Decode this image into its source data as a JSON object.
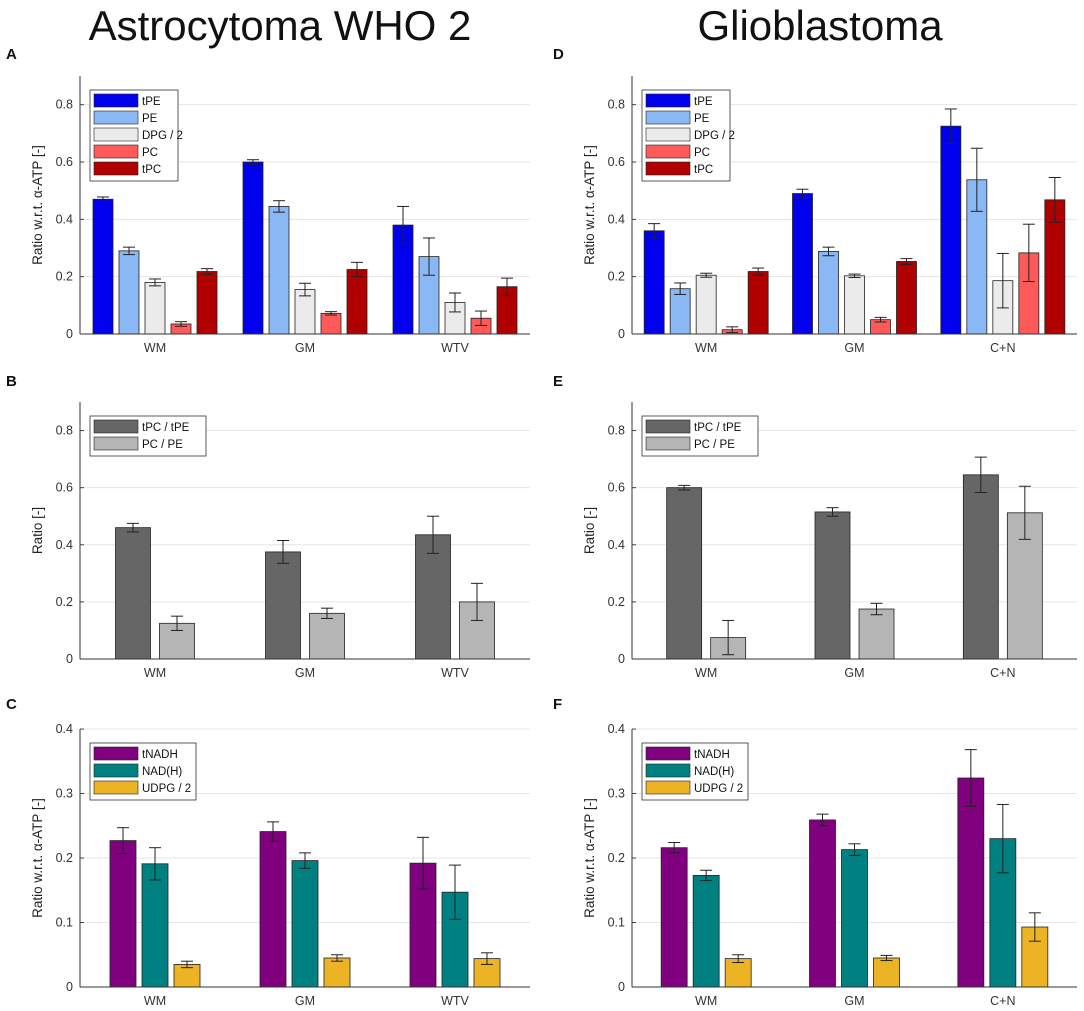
{
  "headings": {
    "left": "Astrocytoma WHO 2",
    "right": "Glioblastoma"
  },
  "colors": {
    "tPE": "#0000ee",
    "PE": "#8ab8f5",
    "DPG / 2": "#ebebeb",
    "PC": "#ff5a5a",
    "tPC": "#b00000",
    "tPC / tPE": "#666666",
    "PC / PE": "#b5b5b5",
    "tNADH": "#800080",
    "NAD(H)": "#008080",
    "UDPG / 2": "#ecb425"
  },
  "chart_data": [
    {
      "id": "A",
      "letter": "A",
      "type": "bar",
      "ylabel": "Ratio w.r.t. α-ATP [-]",
      "ylim": [
        0,
        0.9
      ],
      "yticks": [
        0,
        0.2,
        0.4,
        0.6,
        0.8
      ],
      "categories": [
        "WM",
        "GM",
        "WTV"
      ],
      "legend_position": "top-left",
      "grid": "horizontal",
      "series": [
        {
          "name": "tPE",
          "values": [
            0.47,
            0.6,
            0.38
          ],
          "errors": [
            0.008,
            0.008,
            0.065
          ]
        },
        {
          "name": "PE",
          "values": [
            0.29,
            0.445,
            0.27
          ],
          "errors": [
            0.013,
            0.02,
            0.065
          ]
        },
        {
          "name": "DPG / 2",
          "values": [
            0.18,
            0.155,
            0.11
          ],
          "errors": [
            0.012,
            0.022,
            0.033
          ]
        },
        {
          "name": "PC",
          "values": [
            0.035,
            0.072,
            0.055
          ],
          "errors": [
            0.008,
            0.006,
            0.025
          ]
        },
        {
          "name": "tPC",
          "values": [
            0.218,
            0.225,
            0.165
          ],
          "errors": [
            0.01,
            0.025,
            0.03
          ]
        }
      ]
    },
    {
      "id": "B",
      "letter": "B",
      "type": "bar",
      "ylabel": "Ratio [-]",
      "ylim": [
        0,
        0.9
      ],
      "yticks": [
        0,
        0.2,
        0.4,
        0.6,
        0.8
      ],
      "categories": [
        "WM",
        "GM",
        "WTV"
      ],
      "legend_position": "top-left",
      "grid": "horizontal",
      "series": [
        {
          "name": "tPC / tPE",
          "values": [
            0.46,
            0.375,
            0.435
          ],
          "errors": [
            0.015,
            0.04,
            0.065
          ]
        },
        {
          "name": "PC / PE",
          "values": [
            0.125,
            0.16,
            0.2
          ],
          "errors": [
            0.025,
            0.018,
            0.065
          ]
        }
      ]
    },
    {
      "id": "C",
      "letter": "C",
      "type": "bar",
      "ylabel": "Ratio w.r.t. α-ATP [-]",
      "ylim": [
        0,
        0.4
      ],
      "yticks": [
        0,
        0.1,
        0.2,
        0.3,
        0.4
      ],
      "categories": [
        "WM",
        "GM",
        "WTV"
      ],
      "legend_position": "top-left",
      "grid": "horizontal",
      "series": [
        {
          "name": "tNADH",
          "values": [
            0.227,
            0.241,
            0.192
          ],
          "errors": [
            0.02,
            0.015,
            0.04
          ]
        },
        {
          "name": "NAD(H)",
          "values": [
            0.191,
            0.196,
            0.147
          ],
          "errors": [
            0.025,
            0.012,
            0.042
          ]
        },
        {
          "name": "UDPG / 2",
          "values": [
            0.035,
            0.045,
            0.044
          ],
          "errors": [
            0.005,
            0.005,
            0.009
          ]
        }
      ]
    },
    {
      "id": "D",
      "letter": "D",
      "type": "bar",
      "ylabel": "Ratio w.r.t. α-ATP [-]",
      "ylim": [
        0,
        0.9
      ],
      "yticks": [
        0,
        0.2,
        0.4,
        0.6,
        0.8
      ],
      "categories": [
        "WM",
        "GM",
        "C+N"
      ],
      "legend_position": "top-left",
      "grid": "horizontal",
      "series": [
        {
          "name": "tPE",
          "values": [
            0.36,
            0.49,
            0.725
          ],
          "errors": [
            0.025,
            0.015,
            0.06
          ]
        },
        {
          "name": "PE",
          "values": [
            0.158,
            0.288,
            0.538
          ],
          "errors": [
            0.02,
            0.015,
            0.11
          ]
        },
        {
          "name": "DPG / 2",
          "values": [
            0.205,
            0.203,
            0.186
          ],
          "errors": [
            0.007,
            0.006,
            0.095
          ]
        },
        {
          "name": "PC",
          "values": [
            0.015,
            0.05,
            0.283
          ],
          "errors": [
            0.01,
            0.008,
            0.1
          ]
        },
        {
          "name": "tPC",
          "values": [
            0.218,
            0.253,
            0.468
          ],
          "errors": [
            0.012,
            0.01,
            0.078
          ]
        }
      ]
    },
    {
      "id": "E",
      "letter": "E",
      "type": "bar",
      "ylabel": "Ratio [-]",
      "ylim": [
        0,
        0.9
      ],
      "yticks": [
        0,
        0.2,
        0.4,
        0.6,
        0.8
      ],
      "categories": [
        "WM",
        "GM",
        "C+N"
      ],
      "legend_position": "top-left",
      "grid": "horizontal",
      "series": [
        {
          "name": "tPC / tPE",
          "values": [
            0.6,
            0.515,
            0.645
          ],
          "errors": [
            0.008,
            0.015,
            0.062
          ]
        },
        {
          "name": "PC / PE",
          "values": [
            0.075,
            0.175,
            0.512
          ],
          "errors": [
            0.06,
            0.02,
            0.093
          ]
        }
      ]
    },
    {
      "id": "F",
      "letter": "F",
      "type": "bar",
      "ylabel": "Ratio w.r.t. α-ATP [-]",
      "ylim": [
        0,
        0.4
      ],
      "yticks": [
        0,
        0.1,
        0.2,
        0.3,
        0.4
      ],
      "categories": [
        "WM",
        "GM",
        "C+N"
      ],
      "legend_position": "top-left",
      "grid": "horizontal",
      "series": [
        {
          "name": "tNADH",
          "values": [
            0.216,
            0.259,
            0.324
          ],
          "errors": [
            0.008,
            0.009,
            0.044
          ]
        },
        {
          "name": "NAD(H)",
          "values": [
            0.173,
            0.213,
            0.23
          ],
          "errors": [
            0.008,
            0.009,
            0.053
          ]
        },
        {
          "name": "UDPG / 2",
          "values": [
            0.044,
            0.045,
            0.093
          ],
          "errors": [
            0.006,
            0.004,
            0.022
          ]
        }
      ]
    }
  ]
}
